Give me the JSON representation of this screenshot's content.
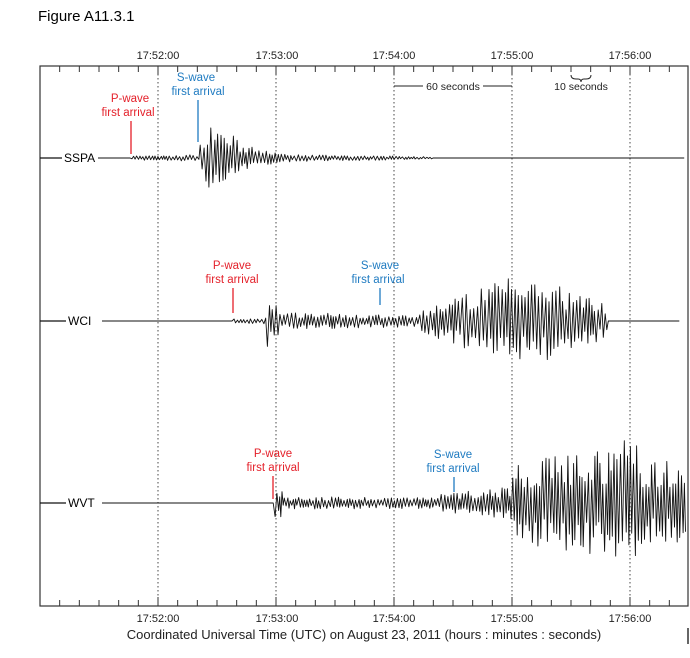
{
  "figure": {
    "title": "Figure A11.3.1",
    "xlabel": "Coordinated Universal Time (UTC) on August 23, 2011  (hours : minutes : seconds)",
    "ticks": [
      "17:52:00",
      "17:53:00",
      "17:54:00",
      "17:55:00",
      "17:56:00"
    ],
    "scale_60": "60 seconds",
    "scale_10": "10 seconds"
  },
  "stations": [
    {
      "name": "SSPA",
      "p_label_1": "P-wave",
      "p_label_2": "first arrival",
      "s_label_1": "S-wave",
      "s_label_2": "first arrival",
      "p_arrival": "17:51:50",
      "s_arrival": "17:52:20"
    },
    {
      "name": "WCI",
      "p_label_1": "P-wave",
      "p_label_2": "first arrival",
      "s_label_1": "S-wave",
      "s_label_2": "first arrival",
      "p_arrival": "17:52:38",
      "s_arrival": "17:53:53"
    },
    {
      "name": "WVT",
      "p_label_1": "P-wave",
      "p_label_2": "first arrival",
      "s_label_1": "S-wave",
      "s_label_2": "first arrival",
      "p_arrival": "17:52:58",
      "s_arrival": "17:54:30"
    }
  ],
  "colors": {
    "p_wave": "#e4202a",
    "s_wave": "#1f7bc1",
    "trace": "#111111",
    "frame": "#333333"
  }
}
